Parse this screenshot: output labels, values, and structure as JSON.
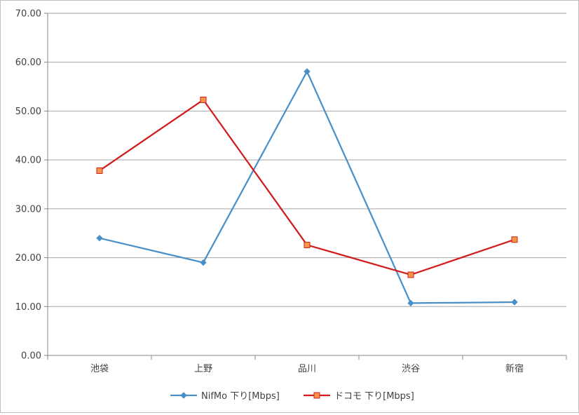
{
  "chart_data": {
    "type": "line",
    "title": "",
    "xlabel": "",
    "ylabel": "",
    "categories": [
      "池袋",
      "上野",
      "品川",
      "渋谷",
      "新宿"
    ],
    "ylim": [
      0,
      70
    ],
    "yticks": [
      "0.00",
      "10.00",
      "20.00",
      "30.00",
      "40.00",
      "50.00",
      "60.00",
      "70.00"
    ],
    "grid": true,
    "legend_position": "bottom",
    "series": [
      {
        "name": "NifMo 下り[Mbps]",
        "values": [
          24.0,
          19.0,
          58.1,
          10.7,
          10.9
        ],
        "color": "#4a90c8",
        "marker": "diamond"
      },
      {
        "name": "ドコモ 下り[Mbps]",
        "values": [
          37.8,
          52.3,
          22.6,
          16.5,
          23.7
        ],
        "color": "#d21c1c",
        "marker": "square",
        "marker_fill": "#f79646"
      }
    ]
  }
}
